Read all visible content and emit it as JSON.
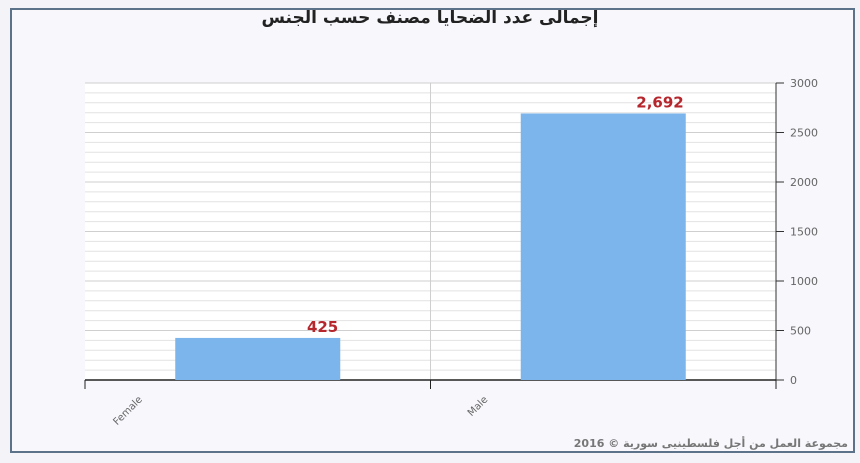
{
  "chart_data": {
    "type": "bar",
    "title": "إجمالى عدد الضحايا مصنف حسب الجنس",
    "categories": [
      "Female",
      "Male"
    ],
    "values": [
      425,
      2692
    ],
    "data_labels": [
      "425",
      "2,692"
    ],
    "ylim": [
      0,
      3000
    ],
    "yticks": [
      "0",
      "500",
      "1000",
      "1500",
      "2000",
      "2500",
      "3000"
    ],
    "y_axis_side": "right",
    "grid": true,
    "bar_color": "#7cb5ec",
    "label_color": "#b5262d"
  },
  "footer": {
    "credit": "مجموعة العمل من أجل فلسطينيى سورية © 2016"
  }
}
